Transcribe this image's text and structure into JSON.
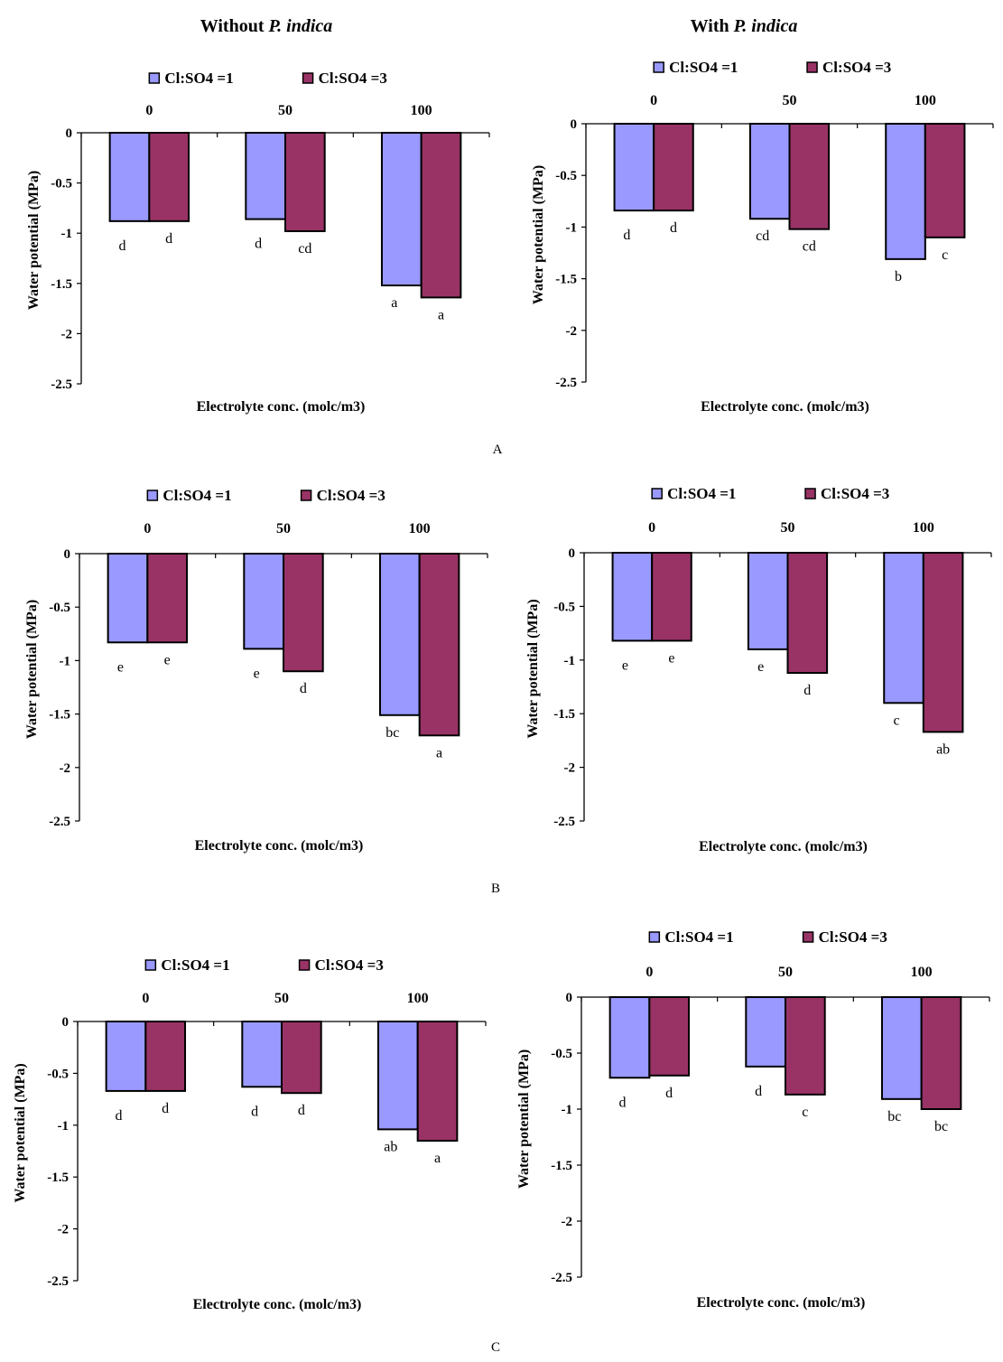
{
  "column_titles": [
    {
      "prefix": "Without ",
      "italic": "P. indica"
    },
    {
      "prefix": "With ",
      "italic": "P. indica"
    }
  ],
  "panel_labels": [
    "A",
    "B",
    "C"
  ],
  "colors": {
    "series1": "#9999FF",
    "series2": "#993366",
    "outline": "#000000"
  },
  "chart_data": [
    {
      "id": "A-without",
      "type": "bar",
      "panel": "A",
      "condition": "Without P. indica",
      "categories": [
        "0",
        "50",
        "100"
      ],
      "xlabel": "Electrolyte conc. (molc/m3)",
      "ylabel": "Water potential (MPa)",
      "ylim": [
        -2.5,
        0
      ],
      "yticks": [
        "0",
        "-0.5",
        "-1",
        "-1.5",
        "-2",
        "-2.5"
      ],
      "legend": "top",
      "grid": false,
      "series": [
        {
          "name": "Cl:SO4 =1",
          "values": [
            -0.88,
            -0.86,
            -1.52
          ],
          "letters": [
            "d",
            "d",
            "a"
          ]
        },
        {
          "name": "Cl:SO4 =3",
          "values": [
            -0.88,
            -0.98,
            -1.64
          ],
          "letters": [
            "d",
            "cd",
            "a"
          ]
        }
      ]
    },
    {
      "id": "A-with",
      "type": "bar",
      "panel": "A",
      "condition": "With P. indica",
      "categories": [
        "0",
        "50",
        "100"
      ],
      "xlabel": "Electrolyte conc. (molc/m3)",
      "ylabel": "Water potential (MPa)",
      "ylim": [
        -2.5,
        0
      ],
      "yticks": [
        "0",
        "-0.5",
        "-1",
        "-1.5",
        "-2",
        "-2.5"
      ],
      "legend": "top",
      "grid": false,
      "series": [
        {
          "name": "Cl:SO4 =1",
          "values": [
            -0.84,
            -0.92,
            -1.31
          ],
          "letters": [
            "d",
            "cd",
            "b"
          ]
        },
        {
          "name": "Cl:SO4 =3",
          "values": [
            -0.84,
            -1.02,
            -1.1
          ],
          "letters": [
            "d",
            "cd",
            "c"
          ]
        }
      ]
    },
    {
      "id": "B-without",
      "type": "bar",
      "panel": "B",
      "condition": "Without P. indica",
      "categories": [
        "0",
        "50",
        "100"
      ],
      "xlabel": "Electrolyte conc. (molc/m3)",
      "ylabel": "Water potential (MPa)",
      "ylim": [
        -2.5,
        0
      ],
      "yticks": [
        "0",
        "-0.5",
        "-1",
        "-1.5",
        "-2",
        "-2.5"
      ],
      "legend": "top",
      "grid": false,
      "series": [
        {
          "name": "Cl:SO4 =1",
          "values": [
            -0.83,
            -0.89,
            -1.51
          ],
          "letters": [
            "e",
            "e",
            "bc"
          ]
        },
        {
          "name": "Cl:SO4 =3",
          "values": [
            -0.83,
            -1.1,
            -1.7
          ],
          "letters": [
            "e",
            "d",
            "a"
          ]
        }
      ]
    },
    {
      "id": "B-with",
      "type": "bar",
      "panel": "B",
      "condition": "With P. indica",
      "categories": [
        "0",
        "50",
        "100"
      ],
      "xlabel": "Electrolyte conc. (molc/m3)",
      "ylabel": "Water potential (MPa)",
      "ylim": [
        -2.5,
        0
      ],
      "yticks": [
        "0",
        "-0.5",
        "-1",
        "-1.5",
        "-2",
        "-2.5"
      ],
      "legend": "top",
      "grid": false,
      "series": [
        {
          "name": "Cl:SO4 =1",
          "values": [
            -0.82,
            -0.9,
            -1.4
          ],
          "letters": [
            "e",
            "e",
            "c"
          ]
        },
        {
          "name": "Cl:SO4 =3",
          "values": [
            -0.82,
            -1.12,
            -1.67
          ],
          "letters": [
            "e",
            "d",
            "ab"
          ]
        }
      ]
    },
    {
      "id": "C-without",
      "type": "bar",
      "panel": "C",
      "condition": "Without P. indica",
      "categories": [
        "0",
        "50",
        "100"
      ],
      "xlabel": "Electrolyte conc. (molc/m3)",
      "ylabel": "Water potential (MPa)",
      "ylim": [
        -2.5,
        0
      ],
      "yticks": [
        "0",
        "-0.5",
        "-1",
        "-1.5",
        "-2",
        "-2.5"
      ],
      "legend": "top",
      "grid": false,
      "series": [
        {
          "name": "Cl:SO4 =1",
          "values": [
            -0.67,
            -0.63,
            -1.04
          ],
          "letters": [
            "d",
            "d",
            "ab"
          ]
        },
        {
          "name": "Cl:SO4 =3",
          "values": [
            -0.67,
            -0.69,
            -1.15
          ],
          "letters": [
            "d",
            "d",
            "a"
          ]
        }
      ]
    },
    {
      "id": "C-with",
      "type": "bar",
      "panel": "C",
      "condition": "With P. indica",
      "categories": [
        "0",
        "50",
        "100"
      ],
      "xlabel": "Electrolyte conc. (molc/m3)",
      "ylabel": "Water potential (MPa)",
      "ylim": [
        -2.5,
        0
      ],
      "yticks": [
        "0",
        "-0.5",
        "-1",
        "-1.5",
        "-2",
        "-2.5"
      ],
      "legend": "top",
      "grid": false,
      "series": [
        {
          "name": "Cl:SO4 =1",
          "values": [
            -0.72,
            -0.62,
            -0.91
          ],
          "letters": [
            "d",
            "d",
            "bc"
          ]
        },
        {
          "name": "Cl:SO4 =3",
          "values": [
            -0.7,
            -0.87,
            -1.0
          ],
          "letters": [
            "d",
            "c",
            "bc"
          ]
        }
      ]
    }
  ]
}
